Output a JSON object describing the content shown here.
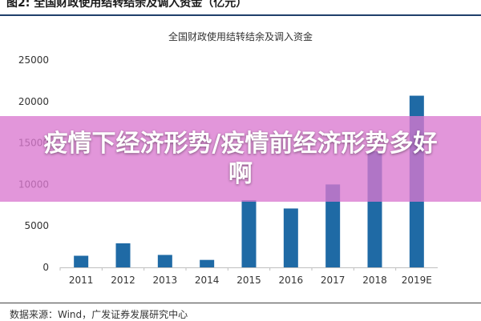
{
  "figure": {
    "label": "图2: 全国财政使用结转结余及调入资金（亿元）"
  },
  "overlay": {
    "text": "疫情下经济形势/疫情前经济形势多好啊"
  },
  "source": {
    "text": "数据来源：Wind，广发证券发展研究中心"
  },
  "colors": {
    "bar": "#1f6aa5",
    "grid": "#d9d9d9",
    "banner": "#da78d0"
  },
  "chart_data": {
    "type": "bar",
    "title": "全国财政使用结转结余及调入资金",
    "xlabel": "",
    "ylabel": "",
    "categories": [
      "2011",
      "2012",
      "2013",
      "2014",
      "2015",
      "2016",
      "2017",
      "2018",
      "2019E"
    ],
    "values": [
      1400,
      2900,
      1500,
      900,
      8100,
      7100,
      10000,
      14000,
      20700
    ],
    "ylim": [
      0,
      25000
    ],
    "yticks": [
      0,
      5000,
      10000,
      15000,
      20000,
      25000
    ],
    "ytick_labels": [
      "0",
      "5000",
      "10000",
      "15000",
      "20000",
      "25000"
    ],
    "grid": false,
    "legend": "none"
  }
}
